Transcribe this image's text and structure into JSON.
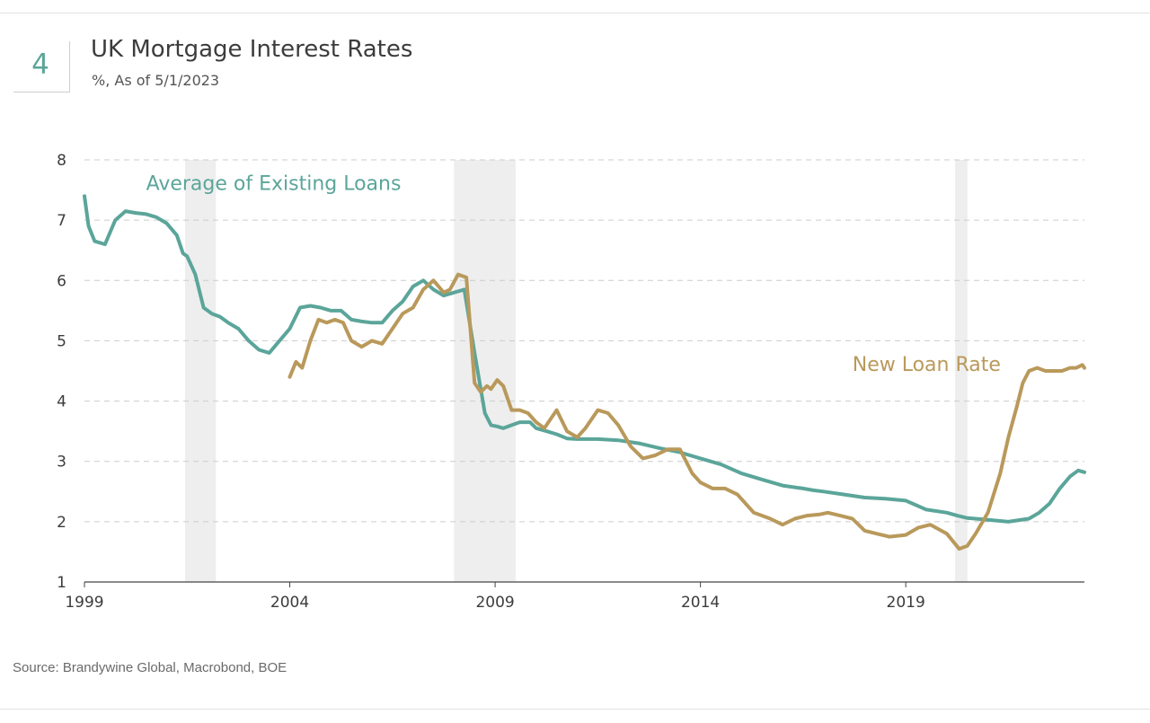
{
  "figure": {
    "number": "4",
    "title": "UK Mortgage Interest Rates",
    "subtitle": "%, As of 5/1/2023",
    "source": "Source: Brandywine Global, Macrobond, BOE"
  },
  "colors": {
    "existing": "#5ba59a",
    "new": "#b9995b",
    "recession": "#eeeeee",
    "grid": "#cccccc",
    "axis": "#444444",
    "tick_text": "#3c3c3c"
  },
  "chart_data": {
    "type": "line",
    "title": "UK Mortgage Interest Rates",
    "xlabel": "",
    "ylabel": "%",
    "xlim": [
      1999.0,
      2023.35
    ],
    "ylim": [
      1,
      8
    ],
    "y_ticks": [
      1,
      2,
      3,
      4,
      5,
      6,
      7,
      8
    ],
    "x_ticks": [
      {
        "value": 1999,
        "label": "1999"
      },
      {
        "value": 2004,
        "label": "2004"
      },
      {
        "value": 2009,
        "label": "2009"
      },
      {
        "value": 2014,
        "label": "2014"
      },
      {
        "value": 2019,
        "label": "2019"
      }
    ],
    "grid": true,
    "recession_bands": [
      [
        2001.45,
        2002.2
      ],
      [
        2008.0,
        2009.5
      ],
      [
        2020.2,
        2020.5
      ]
    ],
    "series": [
      {
        "name": "Average of Existing Loans",
        "label": "Average of Existing Loans",
        "color_key": "existing",
        "x": [
          1999.0,
          1999.1,
          1999.25,
          1999.5,
          1999.75,
          2000.0,
          2000.25,
          2000.5,
          2000.75,
          2001.0,
          2001.25,
          2001.4,
          2001.5,
          2001.7,
          2001.9,
          2002.1,
          2002.3,
          2002.5,
          2002.75,
          2003.0,
          2003.25,
          2003.5,
          2003.75,
          2004.0,
          2004.25,
          2004.5,
          2004.75,
          2005.0,
          2005.25,
          2005.5,
          2005.75,
          2006.0,
          2006.25,
          2006.5,
          2006.75,
          2007.0,
          2007.25,
          2007.5,
          2007.75,
          2008.0,
          2008.25,
          2008.5,
          2008.75,
          2008.9,
          2009.05,
          2009.2,
          2009.4,
          2009.6,
          2009.85,
          2010.0,
          2010.25,
          2010.5,
          2010.75,
          2011.0,
          2011.5,
          2012.0,
          2012.5,
          2013.0,
          2013.5,
          2014.0,
          2014.5,
          2015.0,
          2015.5,
          2016.0,
          2016.5,
          2016.75,
          2017.0,
          2017.5,
          2018.0,
          2018.5,
          2019.0,
          2019.5,
          2020.0,
          2020.25,
          2020.5,
          2021.0,
          2021.5,
          2022.0,
          2022.25,
          2022.5,
          2022.75,
          2023.0,
          2023.2,
          2023.35
        ],
        "y": [
          7.4,
          6.9,
          6.65,
          6.6,
          7.0,
          7.15,
          7.12,
          7.1,
          7.05,
          6.95,
          6.75,
          6.45,
          6.4,
          6.1,
          5.55,
          5.45,
          5.4,
          5.3,
          5.2,
          5.0,
          4.85,
          4.8,
          5.0,
          5.2,
          5.55,
          5.58,
          5.55,
          5.5,
          5.5,
          5.35,
          5.32,
          5.3,
          5.3,
          5.5,
          5.65,
          5.9,
          6.0,
          5.85,
          5.75,
          5.8,
          5.85,
          4.8,
          3.8,
          3.6,
          3.58,
          3.55,
          3.6,
          3.65,
          3.65,
          3.55,
          3.5,
          3.45,
          3.38,
          3.37,
          3.37,
          3.35,
          3.3,
          3.22,
          3.15,
          3.05,
          2.95,
          2.8,
          2.7,
          2.6,
          2.55,
          2.52,
          2.5,
          2.45,
          2.4,
          2.38,
          2.35,
          2.2,
          2.15,
          2.1,
          2.06,
          2.03,
          2.0,
          2.05,
          2.15,
          2.3,
          2.55,
          2.75,
          2.85,
          2.82
        ],
        "label_pos": {
          "x": 2000.5,
          "y": 7.5
        }
      },
      {
        "name": "New Loan Rate",
        "label": "New Loan Rate",
        "color_key": "new",
        "x": [
          2004.0,
          2004.15,
          2004.3,
          2004.5,
          2004.7,
          2004.9,
          2005.1,
          2005.3,
          2005.5,
          2005.75,
          2006.0,
          2006.25,
          2006.5,
          2006.75,
          2007.0,
          2007.25,
          2007.5,
          2007.75,
          2007.9,
          2008.1,
          2008.3,
          2008.5,
          2008.65,
          2008.8,
          2008.9,
          2009.05,
          2009.2,
          2009.4,
          2009.6,
          2009.8,
          2010.0,
          2010.2,
          2010.5,
          2010.75,
          2011.0,
          2011.2,
          2011.5,
          2011.75,
          2012.0,
          2012.3,
          2012.6,
          2012.9,
          2013.2,
          2013.5,
          2013.8,
          2014.0,
          2014.3,
          2014.6,
          2014.9,
          2015.1,
          2015.3,
          2015.7,
          2016.0,
          2016.3,
          2016.6,
          2016.9,
          2017.1,
          2017.4,
          2017.7,
          2018.0,
          2018.3,
          2018.6,
          2019.0,
          2019.3,
          2019.6,
          2020.0,
          2020.3,
          2020.5,
          2020.7,
          2021.0,
          2021.3,
          2021.5,
          2021.7,
          2021.85,
          2022.0,
          2022.2,
          2022.4,
          2022.6,
          2022.8,
          2023.0,
          2023.15,
          2023.3,
          2023.35
        ],
        "y": [
          4.4,
          4.65,
          4.55,
          5.0,
          5.35,
          5.3,
          5.35,
          5.3,
          5.0,
          4.9,
          5.0,
          4.95,
          5.2,
          5.45,
          5.55,
          5.85,
          6.0,
          5.8,
          5.85,
          6.1,
          6.05,
          4.3,
          4.15,
          4.25,
          4.2,
          4.35,
          4.25,
          3.85,
          3.85,
          3.8,
          3.65,
          3.55,
          3.85,
          3.5,
          3.4,
          3.55,
          3.85,
          3.8,
          3.6,
          3.25,
          3.05,
          3.1,
          3.2,
          3.2,
          2.8,
          2.65,
          2.55,
          2.55,
          2.45,
          2.3,
          2.15,
          2.05,
          1.95,
          2.05,
          2.1,
          2.12,
          2.15,
          2.1,
          2.05,
          1.85,
          1.8,
          1.75,
          1.78,
          1.9,
          1.95,
          1.8,
          1.55,
          1.6,
          1.8,
          2.15,
          2.8,
          3.4,
          3.9,
          4.3,
          4.5,
          4.55,
          4.5,
          4.5,
          4.5,
          4.55,
          4.55,
          4.6,
          4.55
        ],
        "label_pos": {
          "x": 2017.7,
          "y": 4.5
        }
      }
    ]
  }
}
